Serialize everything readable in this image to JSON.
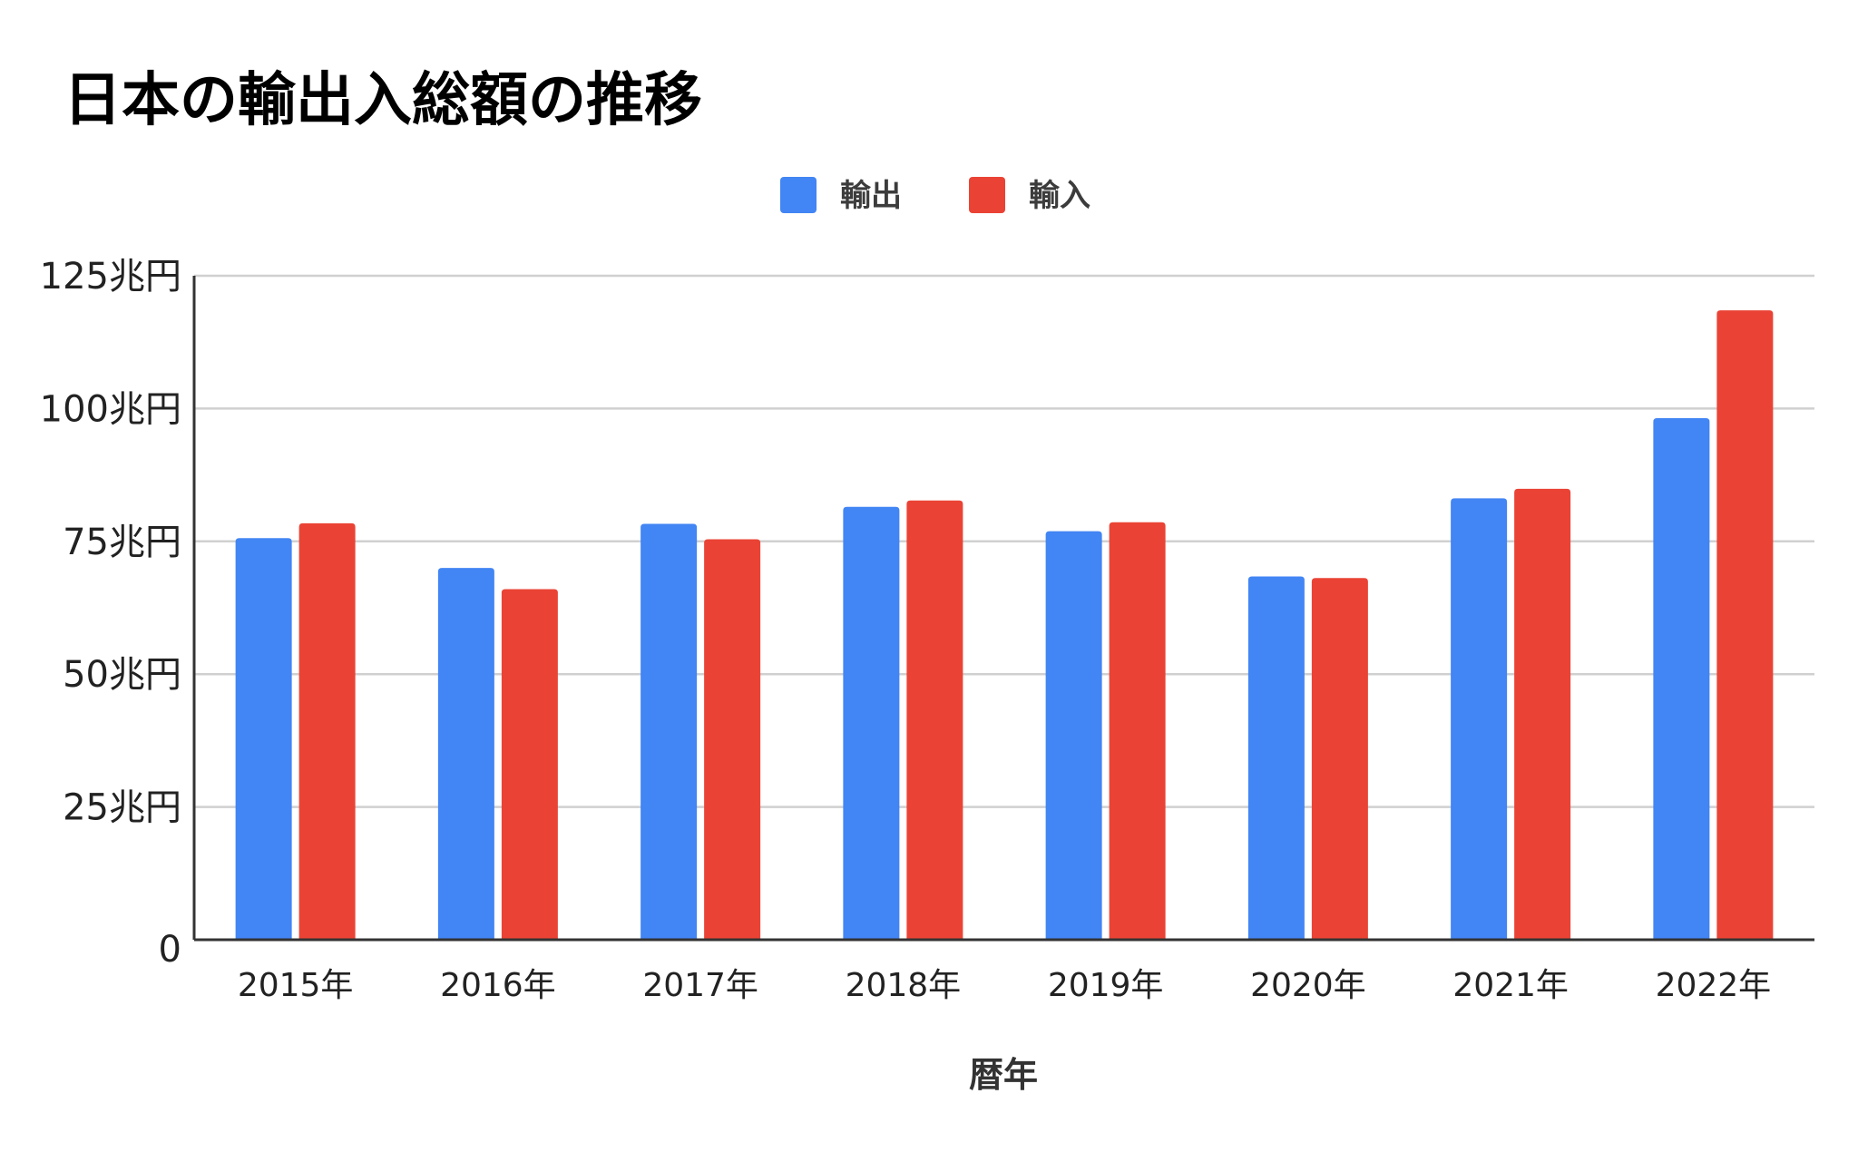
{
  "chart_data": {
    "type": "bar",
    "title": "日本の輸出入総額の推移",
    "xlabel": "暦年",
    "ylabel": "",
    "categories": [
      "2015年",
      "2016年",
      "2017年",
      "2018年",
      "2019年",
      "2020年",
      "2021年",
      "2022年"
    ],
    "series": [
      {
        "name": "輸出",
        "color": "#4285F4",
        "values": [
          75.6,
          70.0,
          78.3,
          81.5,
          76.9,
          68.4,
          83.1,
          98.2
        ]
      },
      {
        "name": "輸入",
        "color": "#EA4335",
        "values": [
          78.4,
          66.0,
          75.4,
          82.7,
          78.6,
          68.1,
          84.9,
          118.5
        ]
      }
    ],
    "yticks": [
      0,
      25,
      50,
      75,
      100,
      125
    ],
    "ytick_labels": [
      "0",
      "25兆円",
      "50兆円",
      "75兆円",
      "100兆円",
      "125兆円"
    ],
    "ylim": [
      0,
      125
    ],
    "grid": true,
    "legend_position": "top-center"
  }
}
